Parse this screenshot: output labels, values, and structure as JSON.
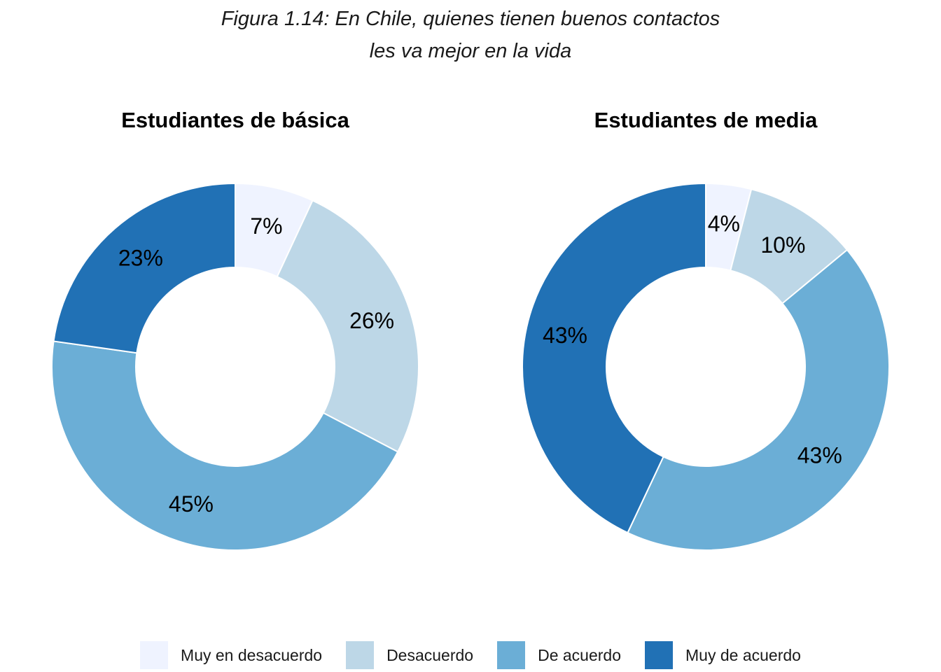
{
  "figure_title": {
    "line1": "Figura 1.14: En Chile, quienes tienen buenos contactos",
    "line2": "les va mejor en la vida"
  },
  "legend": {
    "position": "bottom",
    "items": [
      {
        "label": "Muy en desacuerdo",
        "color": "#eff3ff"
      },
      {
        "label": "Desacuerdo",
        "color": "#bdd7e7"
      },
      {
        "label": "De acuerdo",
        "color": "#6baed6"
      },
      {
        "label": "Muy de acuerdo",
        "color": "#2171b5"
      }
    ]
  },
  "chart_data": [
    {
      "type": "pie",
      "style": "donut",
      "title": "Estudiantes de básica",
      "categories": [
        "Muy en desacuerdo",
        "Desacuerdo",
        "De acuerdo",
        "Muy de acuerdo"
      ],
      "values": [
        7,
        26,
        45,
        23
      ],
      "labels": [
        "7%",
        "26%",
        "45%",
        "23%"
      ],
      "colors": [
        "#eff3ff",
        "#bdd7e7",
        "#6baed6",
        "#2171b5"
      ]
    },
    {
      "type": "pie",
      "style": "donut",
      "title": "Estudiantes de media",
      "categories": [
        "Muy en desacuerdo",
        "Desacuerdo",
        "De acuerdo",
        "Muy de acuerdo"
      ],
      "values": [
        4,
        10,
        43,
        43
      ],
      "labels": [
        "4%",
        "10%",
        "43%",
        "43%"
      ],
      "colors": [
        "#eff3ff",
        "#bdd7e7",
        "#6baed6",
        "#2171b5"
      ]
    }
  ]
}
